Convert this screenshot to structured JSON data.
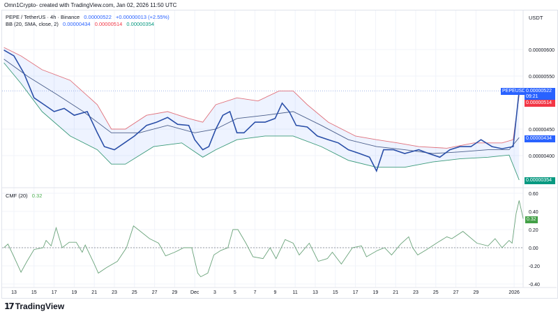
{
  "credit": "Omn1Crypto- created with TradingView.com, Jan 02, 2026 11:50 UTC",
  "legend": {
    "symbol": "PEPE / TetherUS · 4h · Binance",
    "price": "0.00000522",
    "change": "+0.00000013 (+2.55%)",
    "bb_label": "BB (20, SMA, close, 2)",
    "bb_basis": "0.00000434",
    "bb_upper": "0.00000514",
    "bb_lower": "0.00000354",
    "cmf_label": "CMF (20)",
    "cmf_value": "0.32"
  },
  "badges": {
    "symbol_tag": "PEPEUSDT",
    "price": "0.00000522",
    "countdown": "09:21",
    "upper": "0.00000514",
    "basis": "0.00000434",
    "lower": "0.00000354",
    "cmf": "0.32"
  },
  "logo": "TradingView",
  "colors": {
    "price": "#2a4fa8",
    "upper": "#e0707a",
    "basis": "#4a5e8a",
    "lower": "#3a9a7a",
    "cmf": "#6aa37a",
    "blue_badge": "#2962ff",
    "red_badge": "#f23645",
    "green_badge": "#089981"
  },
  "chart_data": [
    {
      "type": "line",
      "title": "PEPE / TetherUS · 4h · Binance",
      "ylabel": "USDT",
      "units": "1e-8 USDT",
      "x_units": "days since Nov 13, 2025",
      "ylim": [
        340,
        640
      ],
      "y_ticks": [
        {
          "v": 600,
          "label": "0.00000600"
        },
        {
          "v": 550,
          "label": "0.00000550"
        },
        {
          "v": 450,
          "label": "0.00000450"
        },
        {
          "v": 400,
          "label": "0.00000400"
        }
      ],
      "series": [
        {
          "name": "close",
          "points": [
            [
              -1,
              599
            ],
            [
              0,
              588
            ],
            [
              1,
              555
            ],
            [
              2,
              509
            ],
            [
              3,
              496
            ],
            [
              4,
              483
            ],
            [
              5,
              489
            ],
            [
              6,
              476
            ],
            [
              7.3,
              483
            ],
            [
              8.3,
              443
            ],
            [
              9,
              417
            ],
            [
              10,
              411
            ],
            [
              11,
              424
            ],
            [
              12,
              437
            ],
            [
              13.2,
              457
            ],
            [
              14.2,
              463
            ],
            [
              15.3,
              472
            ],
            [
              16.3,
              459
            ],
            [
              17.4,
              457
            ],
            [
              18,
              430
            ],
            [
              18.8,
              411
            ],
            [
              19.4,
              417
            ],
            [
              20.1,
              450
            ],
            [
              20.8,
              476
            ],
            [
              21.5,
              483
            ],
            [
              22.2,
              443
            ],
            [
              22.9,
              443
            ],
            [
              24,
              463
            ],
            [
              25,
              463
            ],
            [
              26,
              470
            ],
            [
              26.7,
              499
            ],
            [
              27.4,
              483
            ],
            [
              28.1,
              457
            ],
            [
              29.2,
              454
            ],
            [
              30.2,
              437
            ],
            [
              31.3,
              430
            ],
            [
              32.3,
              424
            ],
            [
              33.3,
              411
            ],
            [
              34.4,
              404
            ],
            [
              35.4,
              397
            ],
            [
              36.1,
              371
            ],
            [
              36.8,
              411
            ],
            [
              37.8,
              411
            ],
            [
              38.9,
              404
            ],
            [
              40.3,
              411
            ],
            [
              41.3,
              404
            ],
            [
              42.4,
              397
            ],
            [
              43.4,
              411
            ],
            [
              44.4,
              417
            ],
            [
              45.5,
              417
            ],
            [
              46.5,
              430
            ],
            [
              47.6,
              417
            ],
            [
              48.6,
              413
            ],
            [
              49.7,
              417
            ],
            [
              50.3,
              522
            ]
          ]
        },
        {
          "name": "bb_upper",
          "points": [
            [
              -1,
              604
            ],
            [
              0.7,
              588
            ],
            [
              2.8,
              562
            ],
            [
              5.6,
              542
            ],
            [
              8.3,
              496
            ],
            [
              9.7,
              450
            ],
            [
              11.1,
              450
            ],
            [
              13.2,
              476
            ],
            [
              15.3,
              483
            ],
            [
              17.4,
              470
            ],
            [
              18.8,
              463
            ],
            [
              20.1,
              496
            ],
            [
              22.2,
              509
            ],
            [
              24.3,
              503
            ],
            [
              26.4,
              522
            ],
            [
              27.8,
              522
            ],
            [
              29.2,
              496
            ],
            [
              31.3,
              463
            ],
            [
              34,
              437
            ],
            [
              36.1,
              430
            ],
            [
              38.2,
              424
            ],
            [
              40.3,
              417
            ],
            [
              43.1,
              414
            ],
            [
              45.8,
              424
            ],
            [
              48.6,
              424
            ],
            [
              49.7,
              430
            ],
            [
              50.3,
              514
            ]
          ]
        },
        {
          "name": "bb_basis",
          "points": [
            [
              -1,
              582
            ],
            [
              1.4,
              549
            ],
            [
              4.2,
              516
            ],
            [
              6.9,
              483
            ],
            [
              9.7,
              443
            ],
            [
              12.5,
              443
            ],
            [
              15.3,
              457
            ],
            [
              18,
              443
            ],
            [
              20.1,
              450
            ],
            [
              22.2,
              470
            ],
            [
              25,
              476
            ],
            [
              27.8,
              483
            ],
            [
              30.6,
              457
            ],
            [
              33.3,
              430
            ],
            [
              36.1,
              417
            ],
            [
              38.9,
              411
            ],
            [
              41.7,
              404
            ],
            [
              44.4,
              407
            ],
            [
              47.2,
              411
            ],
            [
              49.3,
              411
            ],
            [
              50.3,
              434
            ]
          ]
        },
        {
          "name": "bb_lower",
          "points": [
            [
              -1,
              575
            ],
            [
              0.7,
              536
            ],
            [
              2.8,
              483
            ],
            [
              5.6,
              437
            ],
            [
              8.3,
              411
            ],
            [
              9.7,
              384
            ],
            [
              11.1,
              384
            ],
            [
              13.9,
              417
            ],
            [
              16.7,
              424
            ],
            [
              18.8,
              397
            ],
            [
              20.1,
              411
            ],
            [
              22.2,
              430
            ],
            [
              25,
              437
            ],
            [
              27.8,
              437
            ],
            [
              30.6,
              417
            ],
            [
              33.3,
              391
            ],
            [
              36.1,
              378
            ],
            [
              38.9,
              378
            ],
            [
              41.7,
              388
            ],
            [
              44.4,
              394
            ],
            [
              47.2,
              397
            ],
            [
              49.3,
              401
            ],
            [
              50.3,
              354
            ]
          ]
        }
      ]
    },
    {
      "type": "line",
      "title": "CMF (20)",
      "ylim": [
        -0.45,
        0.62
      ],
      "y_ticks": [
        {
          "v": 0.6,
          "label": "0.60"
        },
        {
          "v": 0.4,
          "label": "0.40"
        },
        {
          "v": 0.2,
          "label": "0.20"
        },
        {
          "v": 0,
          "label": "0.00"
        },
        {
          "v": -0.2,
          "label": "-0.20"
        },
        {
          "v": -0.4,
          "label": "-0.40"
        }
      ],
      "series": [
        {
          "name": "cmf",
          "points": [
            [
              -1,
              0
            ],
            [
              -0.6,
              0.04
            ],
            [
              0,
              -0.1
            ],
            [
              0.7,
              -0.27
            ],
            [
              1.3,
              -0.15
            ],
            [
              2,
              -0.02
            ],
            [
              2.9,
              0
            ],
            [
              3.2,
              0.08
            ],
            [
              3.7,
              0.02
            ],
            [
              4.2,
              0.22
            ],
            [
              4.8,
              0
            ],
            [
              5.5,
              0.06
            ],
            [
              6.2,
              0.06
            ],
            [
              6.8,
              -0.05
            ],
            [
              7.1,
              0.03
            ],
            [
              8,
              -0.18
            ],
            [
              8.4,
              -0.28
            ],
            [
              9.2,
              -0.22
            ],
            [
              10.3,
              -0.15
            ],
            [
              11.2,
              0
            ],
            [
              11.9,
              0.24
            ],
            [
              12.6,
              0.18
            ],
            [
              13.5,
              0.1
            ],
            [
              14.4,
              0.05
            ],
            [
              15.1,
              -0.09
            ],
            [
              16,
              -0.05
            ],
            [
              16.9,
              0
            ],
            [
              17.7,
              0
            ],
            [
              18.3,
              -0.28
            ],
            [
              18.6,
              -0.32
            ],
            [
              19.3,
              -0.28
            ],
            [
              19.9,
              -0.08
            ],
            [
              20.6,
              -0.03
            ],
            [
              21.3,
              0
            ],
            [
              21.8,
              0.2
            ],
            [
              22.3,
              0.2
            ],
            [
              23.1,
              0.05
            ],
            [
              23.8,
              -0.1
            ],
            [
              24.8,
              -0.12
            ],
            [
              25.5,
              0
            ],
            [
              26.1,
              -0.12
            ],
            [
              27,
              0.09
            ],
            [
              27.8,
              0.05
            ],
            [
              28.4,
              -0.08
            ],
            [
              29.4,
              0.05
            ],
            [
              30.3,
              -0.15
            ],
            [
              31.2,
              -0.12
            ],
            [
              31.7,
              -0.05
            ],
            [
              32.6,
              -0.18
            ],
            [
              33.7,
              0
            ],
            [
              34.6,
              0.02
            ],
            [
              35.1,
              -0.1
            ],
            [
              36.2,
              -0.03
            ],
            [
              36.9,
              0
            ],
            [
              37.6,
              -0.08
            ],
            [
              38.5,
              0.04
            ],
            [
              39.3,
              0.12
            ],
            [
              39.7,
              0
            ],
            [
              40.2,
              -0.08
            ],
            [
              41.1,
              -0.02
            ],
            [
              42.2,
              0.06
            ],
            [
              43.1,
              0.12
            ],
            [
              43.6,
              0.1
            ],
            [
              44.7,
              0.18
            ],
            [
              46.1,
              0.05
            ],
            [
              47.2,
              0.02
            ],
            [
              47.9,
              0.1
            ],
            [
              48.6,
              0
            ],
            [
              49.3,
              0.08
            ],
            [
              49.6,
              0.05
            ],
            [
              50,
              0.38
            ],
            [
              50.3,
              0.52
            ],
            [
              50.7,
              0.32
            ]
          ]
        }
      ]
    }
  ],
  "x_ticks": [
    {
      "d": 0,
      "label": "13"
    },
    {
      "d": 2,
      "label": "15"
    },
    {
      "d": 4,
      "label": "17"
    },
    {
      "d": 6,
      "label": "19"
    },
    {
      "d": 8,
      "label": "21"
    },
    {
      "d": 10,
      "label": "23"
    },
    {
      "d": 12,
      "label": "25"
    },
    {
      "d": 14,
      "label": "27"
    },
    {
      "d": 16,
      "label": "29"
    },
    {
      "d": 18,
      "label": "Dec"
    },
    {
      "d": 20,
      "label": "3"
    },
    {
      "d": 22,
      "label": "5"
    },
    {
      "d": 24,
      "label": "7"
    },
    {
      "d": 26,
      "label": "9"
    },
    {
      "d": 28,
      "label": "11"
    },
    {
      "d": 30,
      "label": "13"
    },
    {
      "d": 32,
      "label": "15"
    },
    {
      "d": 34,
      "label": "17"
    },
    {
      "d": 36,
      "label": "19"
    },
    {
      "d": 38,
      "label": "21"
    },
    {
      "d": 40,
      "label": "23"
    },
    {
      "d": 42,
      "label": "25"
    },
    {
      "d": 44,
      "label": "27"
    },
    {
      "d": 46,
      "label": "29"
    },
    {
      "d": 49.8,
      "label": "2026"
    }
  ]
}
